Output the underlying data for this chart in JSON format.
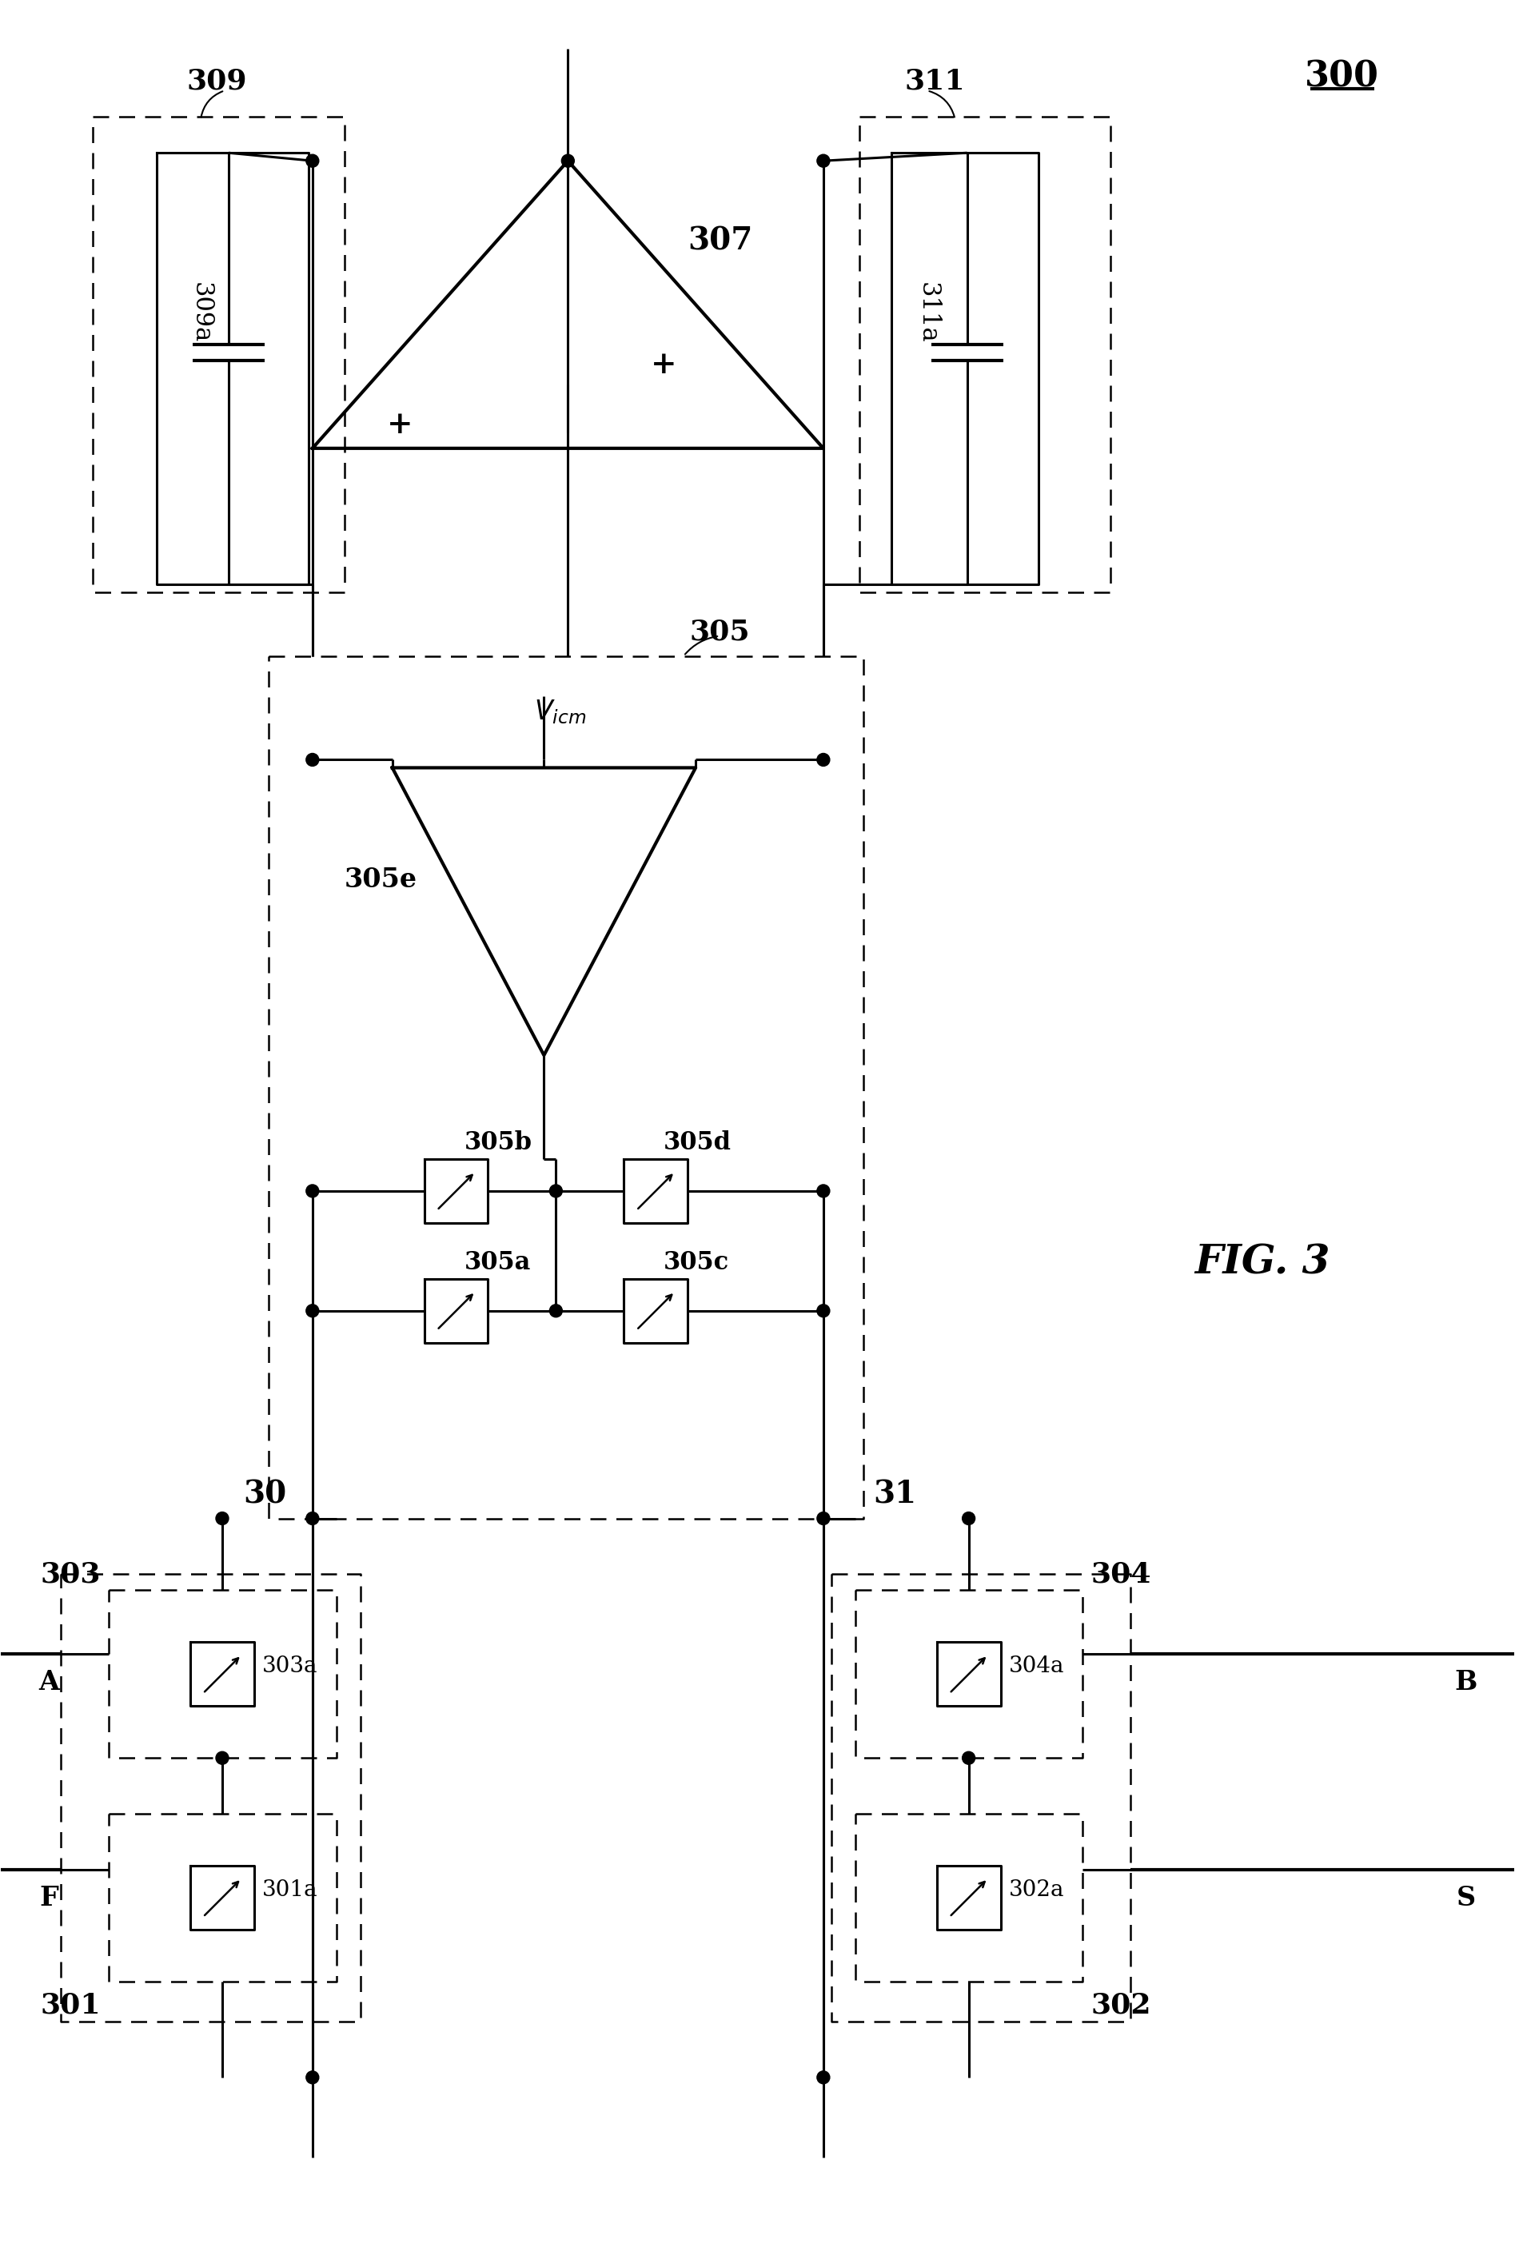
{
  "fig_width": 18.95,
  "fig_height": 28.21,
  "bg_color": "#ffffff",
  "labels": {
    "300": "300",
    "301": "301",
    "302": "302",
    "303": "303",
    "304": "304",
    "305": "305",
    "307": "307",
    "309": "309",
    "309a": "309a",
    "311": "311",
    "311a": "311a",
    "305a": "305a",
    "305b": "305b",
    "305c": "305c",
    "305d": "305d",
    "305e": "305e",
    "301a": "301a",
    "302a": "302a",
    "303a": "303a",
    "304a": "304a",
    "Vicm": "V_{icm}",
    "30": "30",
    "31": "31",
    "A": "A",
    "B": "B",
    "F": "F",
    "S": "S",
    "fig3": "FIG. 3"
  }
}
